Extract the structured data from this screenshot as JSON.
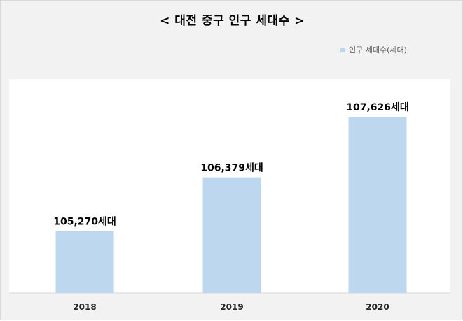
{
  "chart_data": {
    "type": "bar",
    "title": "< 대전 중구 인구 세대수 >",
    "categories": [
      "2018",
      "2019",
      "2020"
    ],
    "series": [
      {
        "name": "인구 세대수(세대)",
        "values": [
          105270,
          106379,
          107626
        ]
      }
    ],
    "data_labels": [
      "105,270세대",
      "106,379세대",
      "107,626세대"
    ],
    "ylim": [
      104000,
      108000
    ],
    "xlabel": "",
    "ylabel": "",
    "grid": false,
    "legend_position": "top-right",
    "colors": {
      "bar": "#bdd7ee",
      "background": "#f2f2f2",
      "plot_area": "#ffffff"
    }
  }
}
